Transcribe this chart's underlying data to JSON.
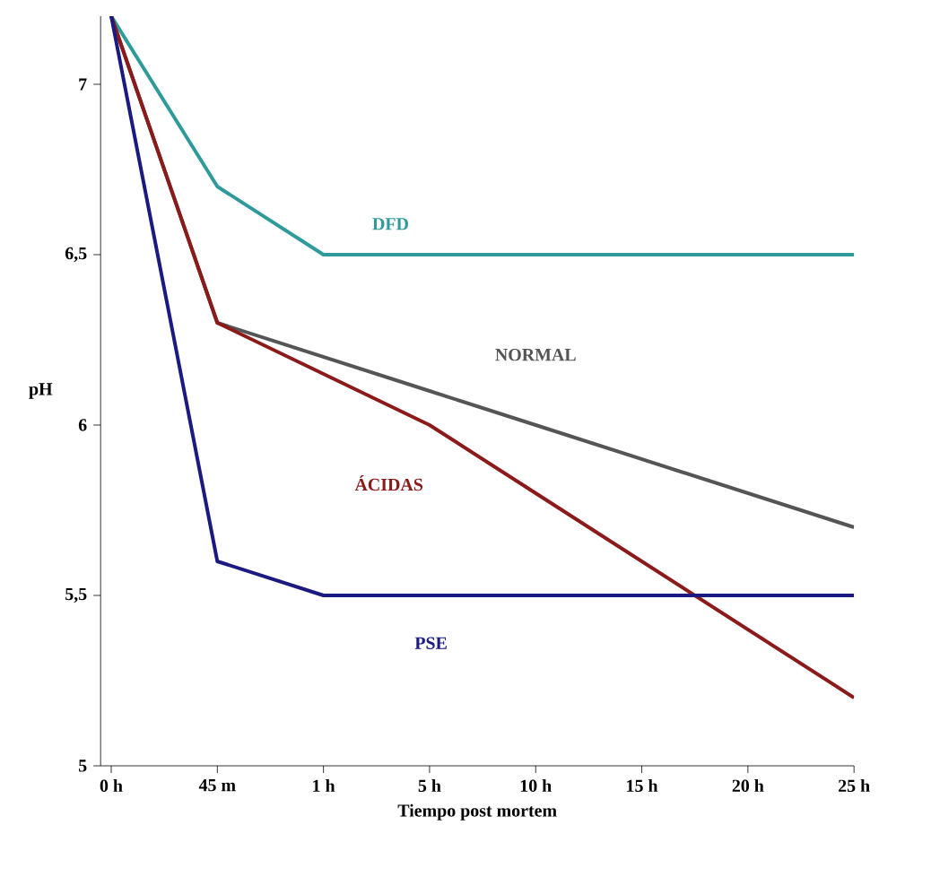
{
  "chart_data": {
    "type": "line",
    "xlabel": "Tiempo post mortem",
    "ylabel": "pH",
    "categories": [
      "0 h",
      "45 m",
      "1 h",
      "5 h",
      "10 h",
      "15 h",
      "20 h",
      "25 h"
    ],
    "ylim": [
      5,
      7.2
    ],
    "yticks": [
      5,
      {
        "value": 5.5,
        "label": "5,5"
      },
      6,
      {
        "value": 6.5,
        "label": "6,5"
      },
      7
    ],
    "grid": false,
    "marker": "none",
    "line_style": "solid",
    "series": [
      {
        "name": "DFD",
        "color": "#2e9a9a",
        "values": [
          7.2,
          6.7,
          6.5,
          6.5,
          6.5,
          6.5,
          6.5,
          6.5
        ]
      },
      {
        "name": "NORMAL",
        "color": "#555555",
        "values": [
          7.2,
          6.3,
          6.2,
          6.1,
          6.0,
          5.9,
          5.8,
          5.7
        ]
      },
      {
        "name": "ÁCIDAS",
        "color": "#8b1a1a",
        "values": [
          7.2,
          6.3,
          6.15,
          6.0,
          5.8,
          5.6,
          5.4,
          5.2
        ]
      },
      {
        "name": "PSE",
        "color": "#1a1a80",
        "values": [
          7.2,
          5.6,
          5.5,
          5.5,
          5.5,
          5.5,
          5.5,
          5.5
        ]
      }
    ]
  }
}
